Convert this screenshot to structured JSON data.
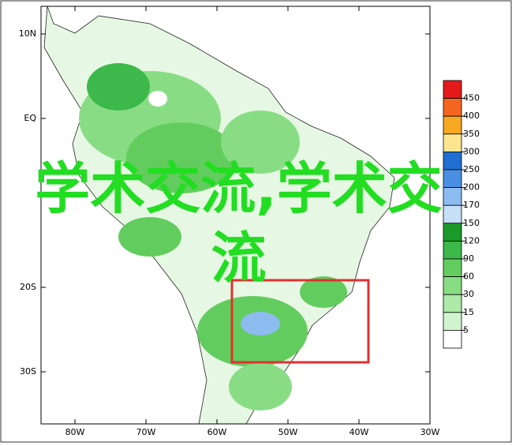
{
  "map": {
    "lon_ticks": [
      {
        "value": -80,
        "label": "80W"
      },
      {
        "value": -70,
        "label": "70W"
      },
      {
        "value": -60,
        "label": "60W"
      },
      {
        "value": -50,
        "label": "50W"
      },
      {
        "value": -40,
        "label": "40W"
      },
      {
        "value": -30,
        "label": "30W"
      }
    ],
    "lat_ticks": [
      {
        "value": 10,
        "label": "10N"
      },
      {
        "value": 0,
        "label": "EQ"
      },
      {
        "value": -20,
        "label": "20S"
      },
      {
        "value": -30,
        "label": "30S"
      }
    ],
    "legend": {
      "levels": [
        450,
        400,
        350,
        300,
        250,
        200,
        170,
        150,
        120,
        90,
        60,
        30,
        15,
        5
      ],
      "colors": [
        "#e3191b",
        "#f4661f",
        "#f7a823",
        "#fde58e",
        "#1f6fd2",
        "#4a90e2",
        "#8cbcf0",
        "#c6e0f7",
        "#1b9a2b",
        "#3db84b",
        "#63cc5e",
        "#88dd84",
        "#acea a8",
        "#d0f5cc",
        "#ffffff"
      ]
    },
    "overlay_text": "学术交流,学术交流"
  }
}
